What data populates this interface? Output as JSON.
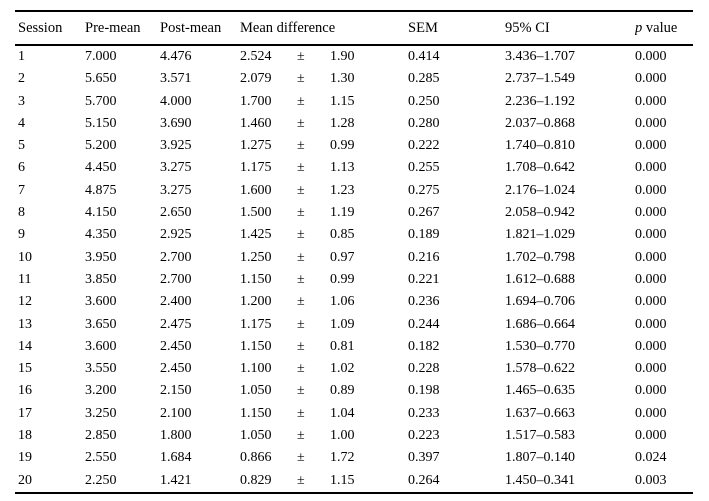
{
  "table": {
    "headers": {
      "session": "Session",
      "pre_mean": "Pre-mean",
      "post_mean": "Post-mean",
      "mean_difference": "Mean difference",
      "sem": "SEM",
      "ci": "95% CI",
      "p_italic": "p",
      "p_rest": " value"
    },
    "rows": [
      {
        "session": "1",
        "pre_mean": "7.000",
        "post_mean": "4.476",
        "diff": "2.524",
        "plus_minus": "±",
        "sd": "1.90",
        "sem": "0.414",
        "ci": "3.436–1.707",
        "p": "0.000"
      },
      {
        "session": "2",
        "pre_mean": "5.650",
        "post_mean": "3.571",
        "diff": "2.079",
        "plus_minus": "±",
        "sd": "1.30",
        "sem": "0.285",
        "ci": "2.737–1.549",
        "p": "0.000"
      },
      {
        "session": "3",
        "pre_mean": "5.700",
        "post_mean": "4.000",
        "diff": "1.700",
        "plus_minus": "±",
        "sd": "1.15",
        "sem": "0.250",
        "ci": "2.236–1.192",
        "p": "0.000"
      },
      {
        "session": "4",
        "pre_mean": "5.150",
        "post_mean": "3.690",
        "diff": "1.460",
        "plus_minus": "±",
        "sd": "1.28",
        "sem": "0.280",
        "ci": "2.037–0.868",
        "p": "0.000"
      },
      {
        "session": "5",
        "pre_mean": "5.200",
        "post_mean": "3.925",
        "diff": "1.275",
        "plus_minus": "±",
        "sd": "0.99",
        "sem": "0.222",
        "ci": "1.740–0.810",
        "p": "0.000"
      },
      {
        "session": "6",
        "pre_mean": "4.450",
        "post_mean": "3.275",
        "diff": "1.175",
        "plus_minus": "±",
        "sd": "1.13",
        "sem": "0.255",
        "ci": "1.708–0.642",
        "p": "0.000"
      },
      {
        "session": "7",
        "pre_mean": "4.875",
        "post_mean": "3.275",
        "diff": "1.600",
        "plus_minus": "±",
        "sd": "1.23",
        "sem": "0.275",
        "ci": "2.176–1.024",
        "p": "0.000"
      },
      {
        "session": "8",
        "pre_mean": "4.150",
        "post_mean": "2.650",
        "diff": "1.500",
        "plus_minus": "±",
        "sd": "1.19",
        "sem": "0.267",
        "ci": "2.058–0.942",
        "p": "0.000"
      },
      {
        "session": "9",
        "pre_mean": "4.350",
        "post_mean": "2.925",
        "diff": "1.425",
        "plus_minus": "±",
        "sd": "0.85",
        "sem": "0.189",
        "ci": "1.821–1.029",
        "p": "0.000"
      },
      {
        "session": "10",
        "pre_mean": "3.950",
        "post_mean": "2.700",
        "diff": "1.250",
        "plus_minus": "±",
        "sd": "0.97",
        "sem": "0.216",
        "ci": "1.702–0.798",
        "p": "0.000"
      },
      {
        "session": "11",
        "pre_mean": "3.850",
        "post_mean": "2.700",
        "diff": "1.150",
        "plus_minus": "±",
        "sd": "0.99",
        "sem": "0.221",
        "ci": "1.612–0.688",
        "p": "0.000"
      },
      {
        "session": "12",
        "pre_mean": "3.600",
        "post_mean": "2.400",
        "diff": "1.200",
        "plus_minus": "±",
        "sd": "1.06",
        "sem": "0.236",
        "ci": "1.694–0.706",
        "p": "0.000"
      },
      {
        "session": "13",
        "pre_mean": "3.650",
        "post_mean": "2.475",
        "diff": "1.175",
        "plus_minus": "±",
        "sd": "1.09",
        "sem": "0.244",
        "ci": "1.686–0.664",
        "p": "0.000"
      },
      {
        "session": "14",
        "pre_mean": "3.600",
        "post_mean": "2.450",
        "diff": "1.150",
        "plus_minus": "±",
        "sd": "0.81",
        "sem": "0.182",
        "ci": "1.530–0.770",
        "p": "0.000"
      },
      {
        "session": "15",
        "pre_mean": "3.550",
        "post_mean": "2.450",
        "diff": "1.100",
        "plus_minus": "±",
        "sd": "1.02",
        "sem": "0.228",
        "ci": "1.578–0.622",
        "p": "0.000"
      },
      {
        "session": "16",
        "pre_mean": "3.200",
        "post_mean": "2.150",
        "diff": "1.050",
        "plus_minus": "±",
        "sd": "0.89",
        "sem": "0.198",
        "ci": "1.465–0.635",
        "p": "0.000"
      },
      {
        "session": "17",
        "pre_mean": "3.250",
        "post_mean": "2.100",
        "diff": "1.150",
        "plus_minus": "±",
        "sd": "1.04",
        "sem": "0.233",
        "ci": "1.637–0.663",
        "p": "0.000"
      },
      {
        "session": "18",
        "pre_mean": "2.850",
        "post_mean": "1.800",
        "diff": "1.050",
        "plus_minus": "±",
        "sd": "1.00",
        "sem": "0.223",
        "ci": "1.517–0.583",
        "p": "0.000"
      },
      {
        "session": "19",
        "pre_mean": "2.550",
        "post_mean": "1.684",
        "diff": "0.866",
        "plus_minus": "±",
        "sd": "1.72",
        "sem": "0.397",
        "ci": "1.807–0.140",
        "p": "0.024"
      },
      {
        "session": "20",
        "pre_mean": "2.250",
        "post_mean": "1.421",
        "diff": "0.829",
        "plus_minus": "±",
        "sd": "1.15",
        "sem": "0.264",
        "ci": "1.450–0.341",
        "p": "0.003"
      }
    ]
  }
}
